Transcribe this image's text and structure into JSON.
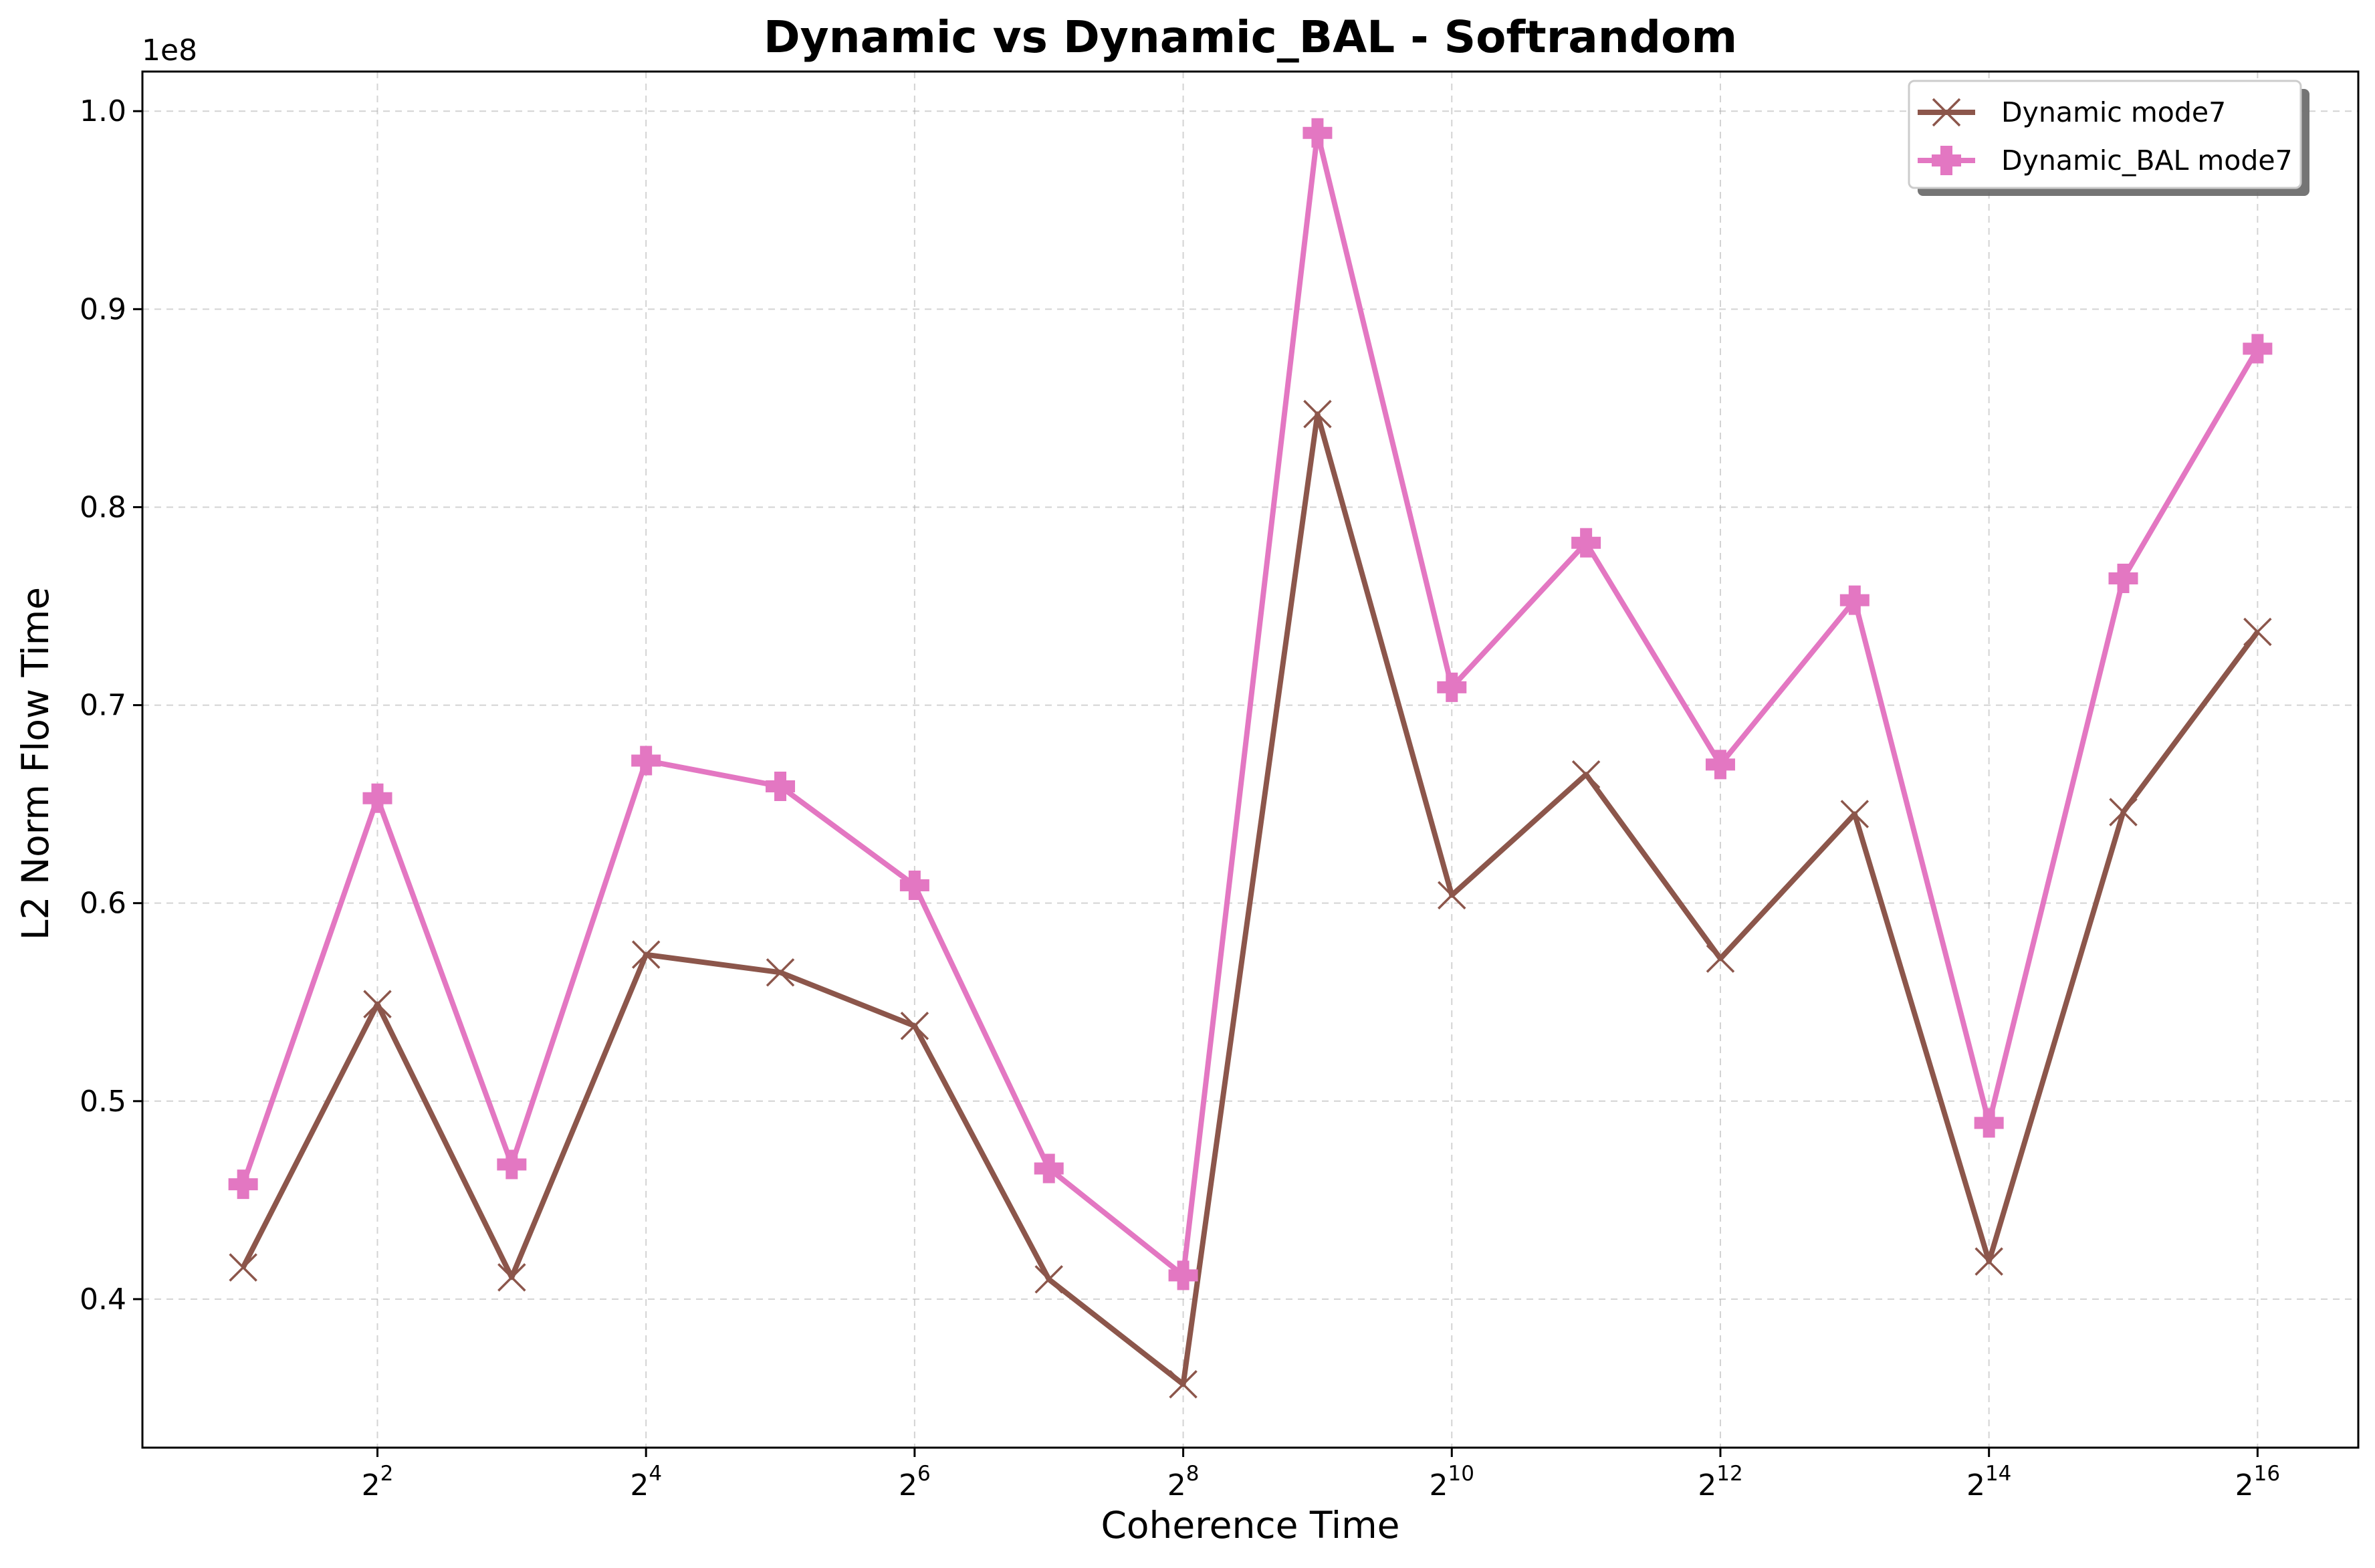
{
  "chart_data": {
    "type": "line",
    "title": "Dynamic vs Dynamic_BAL - Softrandom",
    "xlabel": "Coherence Time",
    "ylabel": "L2 Norm Flow Time",
    "y_offset_label": "1e8",
    "x_scale": "log2",
    "x": [
      2,
      4,
      8,
      16,
      32,
      64,
      128,
      256,
      512,
      1024,
      2048,
      4096,
      8192,
      16384,
      32768,
      65536
    ],
    "x_ticks": [
      {
        "value": 4,
        "base": "2",
        "exp": "2"
      },
      {
        "value": 16,
        "base": "2",
        "exp": "4"
      },
      {
        "value": 64,
        "base": "2",
        "exp": "6"
      },
      {
        "value": 256,
        "base": "2",
        "exp": "8"
      },
      {
        "value": 1024,
        "base": "2",
        "exp": "10"
      },
      {
        "value": 4096,
        "base": "2",
        "exp": "12"
      },
      {
        "value": 16384,
        "base": "2",
        "exp": "14"
      },
      {
        "value": 65536,
        "base": "2",
        "exp": "16"
      }
    ],
    "y_ticks": [
      0.4,
      0.5,
      0.6,
      0.7,
      0.8,
      0.9,
      1.0
    ],
    "y_tick_labels": [
      "0.4",
      "0.5",
      "0.6",
      "0.7",
      "0.8",
      "0.9",
      "1.0"
    ],
    "ylim": [
      0.325,
      1.02
    ],
    "y_unit_multiplier": 100000000,
    "grid": true,
    "legend_position": "top-right",
    "series": [
      {
        "name": "Dynamic mode7",
        "color": "#8c564b",
        "marker": "x",
        "values": [
          0.416,
          0.549,
          0.411,
          0.574,
          0.565,
          0.538,
          0.41,
          0.357,
          0.847,
          0.604,
          0.665,
          0.572,
          0.645,
          0.419,
          0.646,
          0.737
        ]
      },
      {
        "name": "Dynamic_BAL mode7",
        "color": "#e377c2",
        "marker": "plus",
        "values": [
          0.458,
          0.653,
          0.468,
          0.672,
          0.659,
          0.609,
          0.466,
          0.412,
          0.989,
          0.709,
          0.782,
          0.67,
          0.753,
          0.489,
          0.764,
          0.88
        ]
      }
    ]
  }
}
